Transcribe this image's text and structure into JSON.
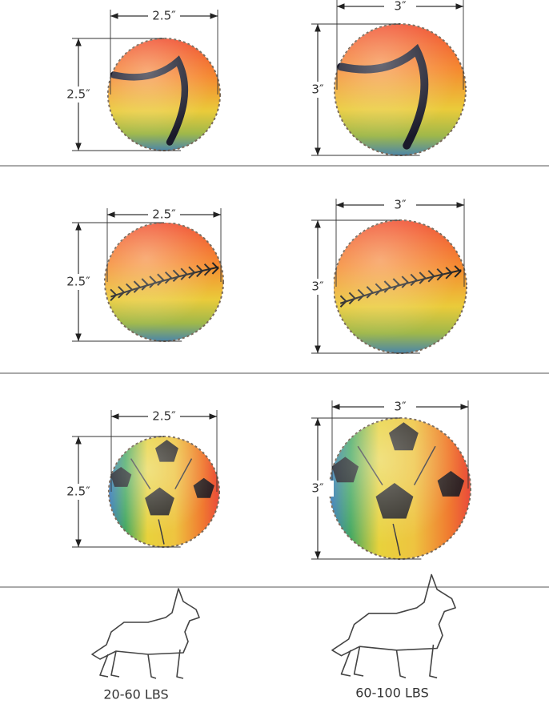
{
  "rows": [
    {
      "small": {
        "width": "2.5″",
        "height": "2.5″"
      },
      "large": {
        "width": "3″",
        "height": "3″"
      }
    },
    {
      "small": {
        "width": "2.5″",
        "height": "2.5″"
      },
      "large": {
        "width": "3″",
        "height": "3″"
      }
    },
    {
      "small": {
        "width": "2.5″",
        "height": "2.5″"
      },
      "large": {
        "width": "3″",
        "height": "3″"
      }
    }
  ],
  "weights": [
    "20-60 LBS",
    "60-100 LBS"
  ]
}
